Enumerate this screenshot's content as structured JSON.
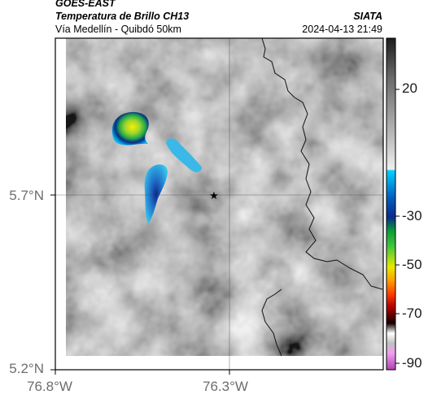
{
  "header": {
    "satellite": "GOES-EAST",
    "product": "Temperatura de Brillo CH13",
    "region": "Vía Medellín - Quibdó 50km",
    "org": "SIATA",
    "datetime": "2024-04-13 21:49"
  },
  "axes": {
    "lat_ticks": [
      "5.7°N",
      "5.2°N"
    ],
    "lon_ticks": [
      "76.8°W",
      "76.3°W"
    ]
  },
  "colorbar": {
    "labels": [
      "20",
      "-30",
      "-50",
      "-70",
      "-90"
    ],
    "colors": [
      "#1c1c1c",
      "#8a8a8a",
      "#e8e8e8",
      "#00c8ff",
      "#0a2a8a",
      "#22b84a",
      "#e8e800",
      "#ff5a00",
      "#b40000",
      "#140000",
      "#ffffff",
      "#d060d0"
    ]
  },
  "marker": {
    "icon": "star-icon"
  }
}
